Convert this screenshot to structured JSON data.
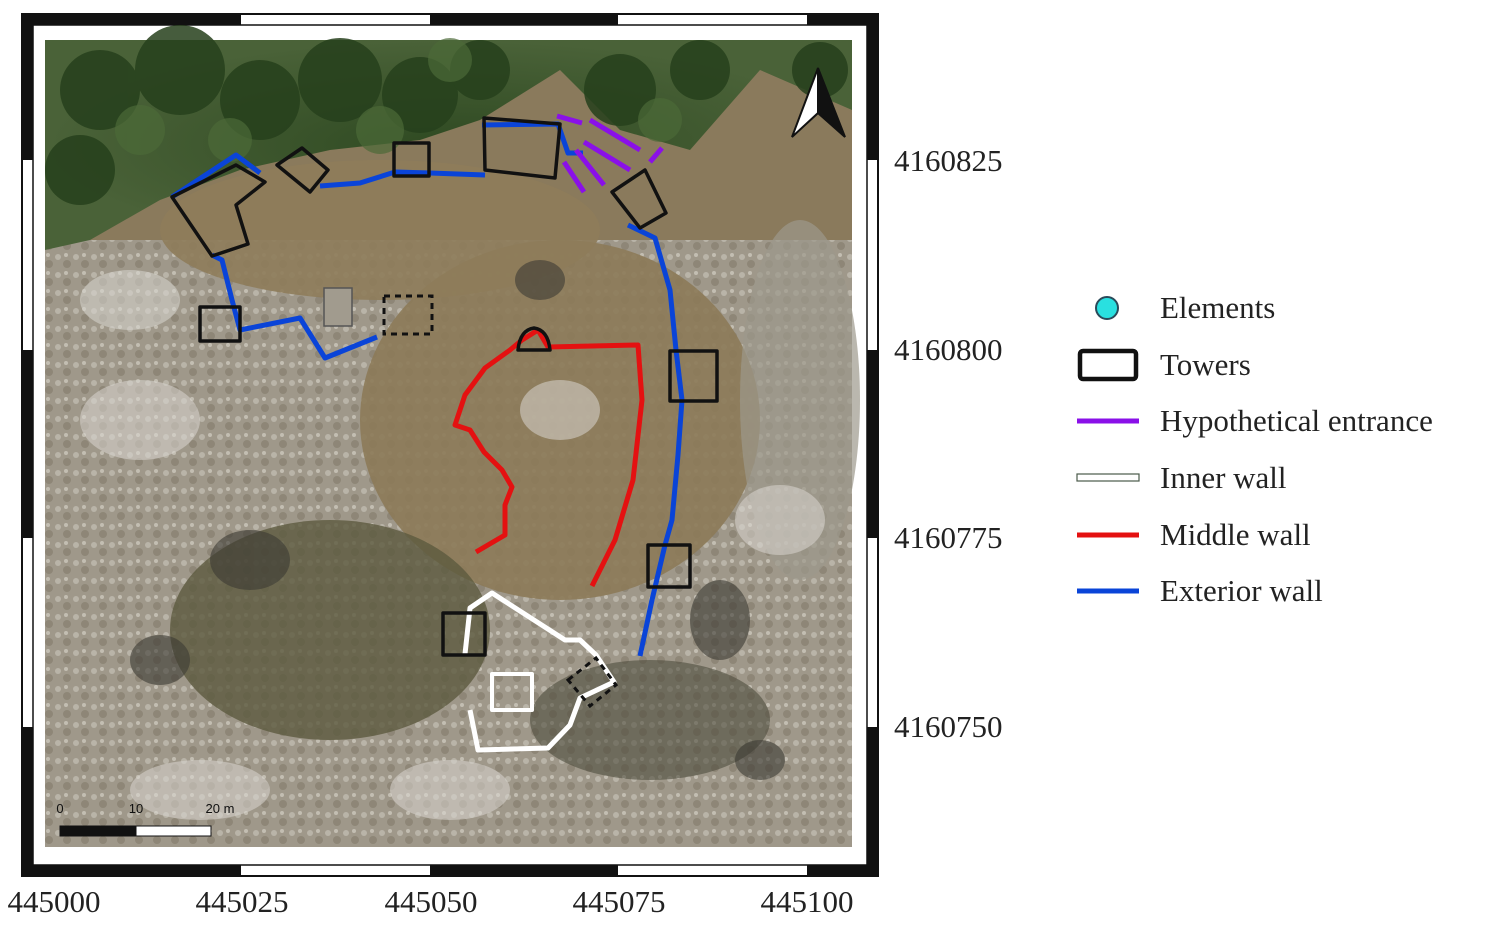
{
  "map": {
    "x_ticks": [
      "445000",
      "445025",
      "445050",
      "445075",
      "445100"
    ],
    "y_ticks": [
      "4160825",
      "4160800",
      "4160775",
      "4160750"
    ],
    "scale_bar": {
      "labels": [
        "0",
        "10",
        "20 m"
      ]
    },
    "north_arrow": "north-arrow-icon"
  },
  "legend": {
    "items": [
      {
        "label": "Elements",
        "symbol": "circle",
        "color": "#29e0e0"
      },
      {
        "label": "Towers",
        "symbol": "rect",
        "color": "#111111"
      },
      {
        "label": "Hypothetical entrance",
        "symbol": "line",
        "color": "#8a10e8"
      },
      {
        "label": "Inner wall",
        "symbol": "outline-line",
        "color": "#ffffff"
      },
      {
        "label": "Middle wall",
        "symbol": "line",
        "color": "#e41111"
      },
      {
        "label": "Exterior wall",
        "symbol": "line",
        "color": "#0a44d8"
      }
    ]
  },
  "colors": {
    "exterior_wall": "#0a44d8",
    "middle_wall": "#e41111",
    "inner_wall": "#ffffff",
    "entrance": "#8a10e8",
    "tower": "#111111",
    "terrain": "#8a7a5c",
    "vegetation": "#3d5a2c",
    "rock": "#b8b6b0"
  }
}
